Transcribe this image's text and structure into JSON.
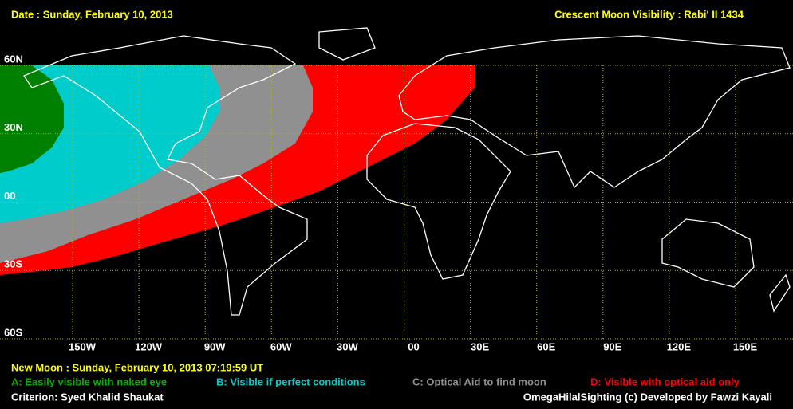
{
  "header": {
    "date": "Date : Sunday, February 10, 2013",
    "title": "Crescent Moon Visibility : Rabi' II  1434"
  },
  "map": {
    "lat_labels": [
      "60N",
      "30N",
      "00",
      "30S",
      "60S"
    ],
    "lon_labels": [
      "150W",
      "120W",
      "90W",
      "60W",
      "30W",
      "00",
      "30E",
      "60E",
      "90E",
      "120E",
      "150E"
    ]
  },
  "footer": {
    "new_moon": "New Moon : Sunday, February 10, 2013  07:19:59  UT",
    "criterion": "Criterion: Syed Khalid Shaukat",
    "credits": "OmegaHilalSighting  (c)  Developed by Fawzi Kayali"
  },
  "legend": [
    {
      "text": "A: Easily visible with naked eye",
      "color": "#008000"
    },
    {
      "text": "B: Visible if perfect conditions",
      "color": "#00cccc"
    },
    {
      "text": "C: Optical Aid to find moon",
      "color": "#909090"
    },
    {
      "text": "D: Visible with optical aid only",
      "color": "#ff0000"
    }
  ]
}
